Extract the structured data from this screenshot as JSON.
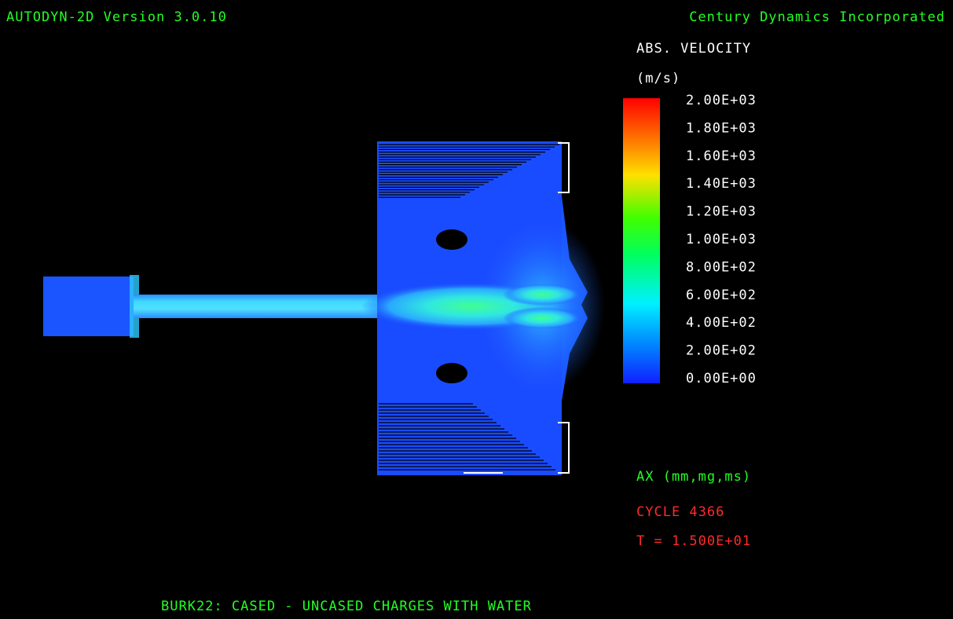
{
  "header": {
    "left": "AUTODYN-2D Version 3.0.10",
    "right": "Century Dynamics Incorporated"
  },
  "legend": {
    "title": "ABS. VELOCITY",
    "unit": "(m/s)",
    "labels": [
      "2.00E+03",
      "1.80E+03",
      "1.60E+03",
      "1.40E+03",
      "1.20E+03",
      "1.00E+03",
      "8.00E+02",
      "6.00E+02",
      "4.00E+02",
      "2.00E+02",
      "0.00E+00"
    ]
  },
  "info": {
    "units": "AX (mm,mg,ms)",
    "cycle": "CYCLE 4366",
    "time": "T = 1.500E+01"
  },
  "footer": {
    "title": "BURK22: CASED - UNCASED CHARGES WITH WATER"
  }
}
